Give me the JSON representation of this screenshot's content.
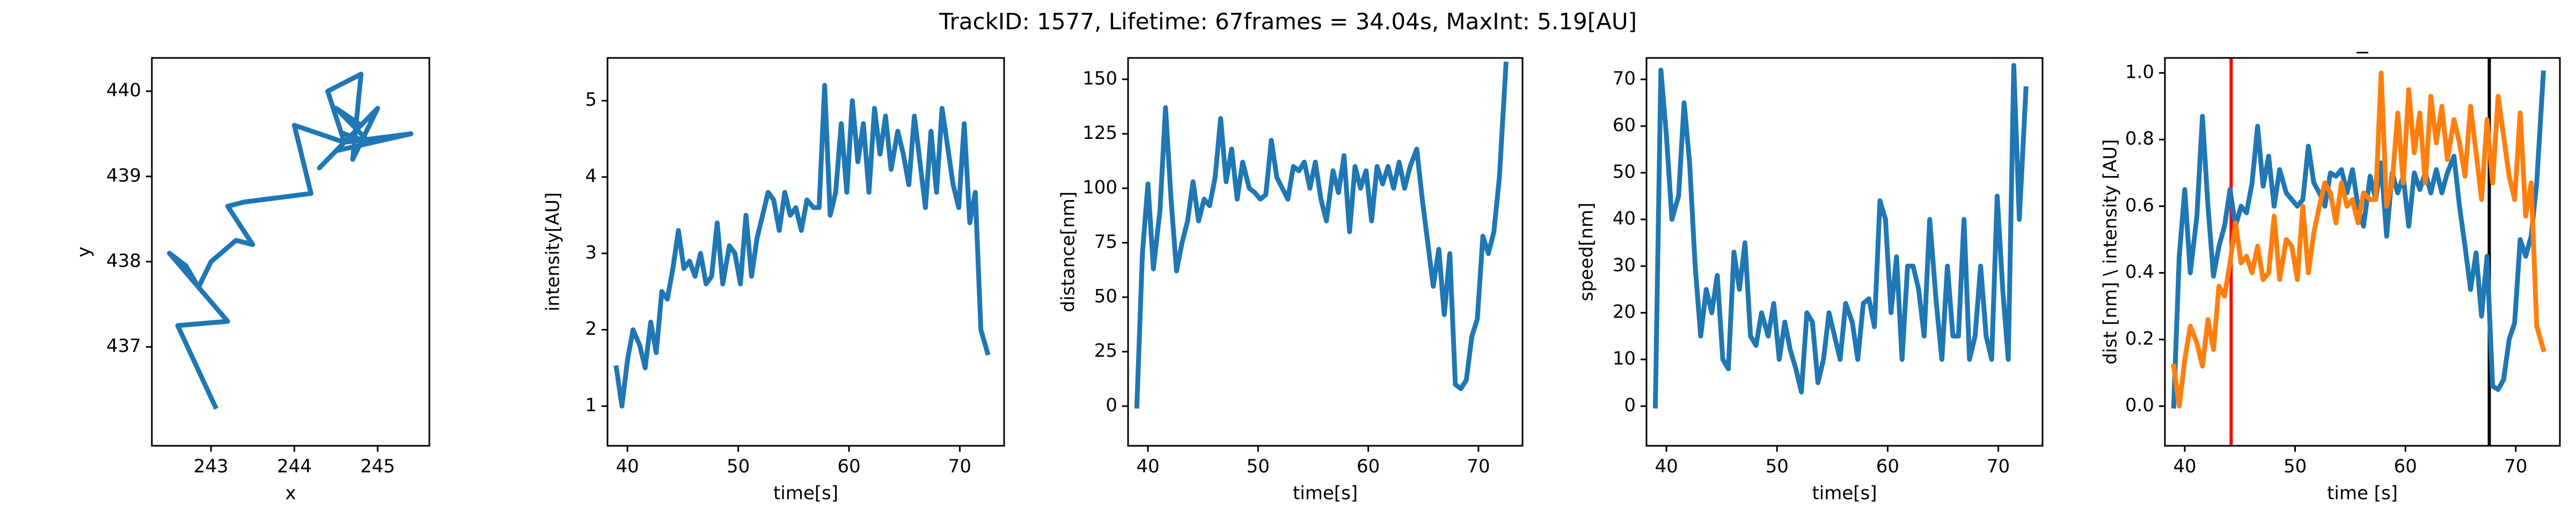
{
  "title": "TrackID: 1577, Lifetime: 67frames = 34.04s, MaxInt: 5.19[AU]",
  "chart_data": [
    {
      "type": "line",
      "xlabel": "x",
      "ylabel": "y",
      "xlim": [
        242.29,
        245.62
      ],
      "ylim": [
        435.84,
        440.39
      ],
      "xticks": [
        243,
        244,
        245
      ],
      "yticks": [
        437,
        438,
        439,
        440
      ],
      "x": [
        243.05,
        242.6,
        243.2,
        242.5,
        242.7,
        242.85,
        243.0,
        243.3,
        243.5,
        243.2,
        243.4,
        244.2,
        244.0,
        244.6,
        244.4,
        244.8,
        244.7,
        245.0,
        244.5,
        245.4,
        244.6,
        244.9,
        244.3,
        244.8,
        244.5,
        244.9,
        244.6
      ],
      "series": [
        {
          "color": "#1f77b4",
          "values": [
            436.3,
            437.25,
            437.3,
            438.1,
            437.95,
            437.7,
            438.0,
            438.25,
            438.2,
            438.65,
            438.7,
            438.8,
            439.6,
            439.4,
            440.0,
            440.2,
            439.2,
            439.8,
            439.3,
            439.5,
            439.4,
            439.7,
            439.1,
            439.6,
            439.8,
            439.4,
            439.5
          ]
        }
      ]
    },
    {
      "type": "line",
      "xlabel": "time[s]",
      "ylabel": "intensity[AU]",
      "xlim": [
        38.2,
        74.0
      ],
      "ylim": [
        0.48,
        5.56
      ],
      "xticks": [
        40,
        50,
        60,
        70
      ],
      "yticks": [
        1,
        2,
        3,
        4,
        5
      ],
      "x": [
        39.0,
        39.5,
        40.0,
        40.5,
        41.1,
        41.6,
        42.1,
        42.6,
        43.1,
        43.6,
        44.1,
        44.6,
        45.1,
        45.6,
        46.1,
        46.6,
        47.1,
        47.6,
        48.1,
        48.6,
        49.2,
        49.7,
        50.2,
        50.7,
        51.2,
        51.7,
        52.2,
        52.7,
        53.2,
        53.7,
        54.2,
        54.7,
        55.2,
        55.7,
        56.2,
        56.8,
        57.3,
        57.8,
        58.3,
        58.8,
        59.3,
        59.8,
        60.3,
        60.8,
        61.3,
        61.8,
        62.3,
        62.8,
        63.3,
        63.8,
        64.4,
        64.9,
        65.4,
        65.9,
        66.4,
        66.9,
        67.4,
        67.9,
        68.4,
        68.9,
        69.4,
        69.9,
        70.4,
        70.9,
        71.4,
        71.9,
        72.5
      ],
      "series": [
        {
          "color": "#1f77b4",
          "values": [
            1.5,
            1.0,
            1.6,
            2.0,
            1.8,
            1.5,
            2.1,
            1.7,
            2.5,
            2.4,
            2.8,
            3.3,
            2.8,
            2.9,
            2.7,
            3.0,
            2.6,
            2.7,
            3.4,
            2.6,
            3.1,
            3.0,
            2.6,
            3.5,
            2.7,
            3.2,
            3.5,
            3.8,
            3.7,
            3.3,
            3.8,
            3.5,
            3.6,
            3.3,
            3.7,
            3.6,
            3.6,
            5.2,
            3.5,
            3.8,
            4.7,
            3.8,
            5.0,
            4.2,
            4.7,
            3.8,
            4.9,
            4.3,
            4.8,
            4.1,
            4.6,
            4.3,
            3.9,
            4.8,
            4.2,
            3.6,
            4.6,
            3.8,
            4.9,
            4.4,
            3.9,
            3.6,
            4.7,
            3.4,
            3.8,
            2.0,
            1.7
          ]
        }
      ]
    },
    {
      "type": "line",
      "xlabel": "time[s]",
      "ylabel": "distance[nm]",
      "xlim": [
        38.2,
        74.0
      ],
      "ylim": [
        -18.2,
        159.8
      ],
      "xticks": [
        40,
        50,
        60,
        70
      ],
      "yticks": [
        0,
        25,
        50,
        75,
        100,
        125,
        150
      ],
      "x": [
        39.0,
        39.5,
        40.0,
        40.5,
        41.1,
        41.6,
        42.1,
        42.6,
        43.1,
        43.6,
        44.1,
        44.6,
        45.1,
        45.6,
        46.1,
        46.6,
        47.1,
        47.6,
        48.1,
        48.6,
        49.2,
        49.7,
        50.2,
        50.7,
        51.2,
        51.7,
        52.2,
        52.7,
        53.2,
        53.7,
        54.2,
        54.7,
        55.2,
        55.7,
        56.2,
        56.8,
        57.3,
        57.8,
        58.3,
        58.8,
        59.3,
        59.8,
        60.3,
        60.8,
        61.3,
        61.8,
        62.3,
        62.8,
        63.3,
        63.8,
        64.4,
        64.9,
        65.4,
        65.9,
        66.4,
        66.9,
        67.4,
        67.9,
        68.4,
        68.9,
        69.4,
        69.9,
        70.4,
        70.9,
        71.4,
        71.9,
        72.5
      ],
      "series": [
        {
          "color": "#1f77b4",
          "values": [
            0,
            70,
            102,
            63,
            90,
            137,
            95,
            62,
            75,
            85,
            103,
            85,
            95,
            92,
            105,
            132,
            103,
            118,
            95,
            112,
            100,
            98,
            95,
            97,
            122,
            105,
            100,
            95,
            110,
            108,
            112,
            100,
            112,
            95,
            85,
            108,
            98,
            115,
            80,
            110,
            100,
            108,
            85,
            110,
            102,
            110,
            100,
            112,
            100,
            110,
            118,
            95,
            75,
            55,
            72,
            42,
            70,
            10,
            8,
            12,
            32,
            40,
            78,
            70,
            80,
            105,
            157
          ]
        }
      ]
    },
    {
      "type": "line",
      "xlabel": "time[s]",
      "ylabel": "speed[nm]",
      "xlim": [
        38.2,
        74.0
      ],
      "ylim": [
        -8.5,
        74.6
      ],
      "xticks": [
        40,
        50,
        60,
        70
      ],
      "yticks": [
        0,
        10,
        20,
        30,
        40,
        50,
        60,
        70
      ],
      "x": [
        39.0,
        39.5,
        40.0,
        40.5,
        41.1,
        41.6,
        42.1,
        42.6,
        43.1,
        43.6,
        44.1,
        44.6,
        45.1,
        45.6,
        46.1,
        46.6,
        47.1,
        47.6,
        48.1,
        48.6,
        49.2,
        49.7,
        50.2,
        50.7,
        51.2,
        51.7,
        52.2,
        52.7,
        53.2,
        53.7,
        54.2,
        54.7,
        55.2,
        55.7,
        56.2,
        56.8,
        57.3,
        57.8,
        58.3,
        58.8,
        59.3,
        59.8,
        60.3,
        60.8,
        61.3,
        61.8,
        62.3,
        62.8,
        63.3,
        63.8,
        64.4,
        64.9,
        65.4,
        65.9,
        66.4,
        66.9,
        67.4,
        67.9,
        68.4,
        68.9,
        69.4,
        69.9,
        70.4,
        70.9,
        71.4,
        71.9,
        72.5
      ],
      "series": [
        {
          "color": "#1f77b4",
          "values": [
            0,
            72,
            58,
            40,
            45,
            65,
            52,
            30,
            15,
            25,
            20,
            28,
            10,
            8,
            33,
            25,
            35,
            15,
            13,
            20,
            15,
            22,
            10,
            18,
            12,
            8,
            3,
            20,
            18,
            5,
            10,
            20,
            15,
            10,
            22,
            18,
            10,
            22,
            23,
            17,
            44,
            40,
            20,
            32,
            10,
            30,
            30,
            25,
            15,
            40,
            22,
            10,
            30,
            15,
            15,
            40,
            10,
            15,
            30,
            15,
            10,
            45,
            25,
            10,
            73,
            40,
            68
          ]
        }
      ]
    },
    {
      "type": "line",
      "title": "_",
      "xlabel": "time [s]",
      "ylabel": "dist [nm] \\ intensity [AU]",
      "xlim": [
        38.2,
        74.0
      ],
      "ylim": [
        -0.119,
        1.045
      ],
      "xticks": [
        40,
        50,
        60,
        70
      ],
      "yticks": [
        {
          "value": 0,
          "label": "0.0"
        },
        0.2,
        0.4,
        0.6,
        0.8,
        {
          "value": 1,
          "label": "1.0"
        }
      ],
      "x": [
        39.0,
        39.5,
        40.0,
        40.5,
        41.1,
        41.6,
        42.1,
        42.6,
        43.1,
        43.6,
        44.1,
        44.6,
        45.1,
        45.6,
        46.1,
        46.6,
        47.1,
        47.6,
        48.1,
        48.6,
        49.2,
        49.7,
        50.2,
        50.7,
        51.2,
        51.7,
        52.2,
        52.7,
        53.2,
        53.7,
        54.2,
        54.7,
        55.2,
        55.7,
        56.2,
        56.8,
        57.3,
        57.8,
        58.3,
        58.8,
        59.3,
        59.8,
        60.3,
        60.8,
        61.3,
        61.8,
        62.3,
        62.8,
        63.3,
        63.8,
        64.4,
        64.9,
        65.4,
        65.9,
        66.4,
        66.9,
        67.4,
        67.9,
        68.4,
        68.9,
        69.4,
        69.9,
        70.4,
        70.9,
        71.4,
        71.9,
        72.5
      ],
      "series": [
        {
          "color": "#1f77b4",
          "values": [
            0,
            0.45,
            0.65,
            0.4,
            0.57,
            0.87,
            0.6,
            0.39,
            0.48,
            0.54,
            0.65,
            0.54,
            0.6,
            0.58,
            0.67,
            0.84,
            0.66,
            0.75,
            0.6,
            0.71,
            0.64,
            0.62,
            0.6,
            0.62,
            0.78,
            0.67,
            0.64,
            0.6,
            0.7,
            0.69,
            0.71,
            0.64,
            0.71,
            0.6,
            0.54,
            0.69,
            0.62,
            0.73,
            0.51,
            0.7,
            0.64,
            0.69,
            0.54,
            0.7,
            0.65,
            0.7,
            0.64,
            0.71,
            0.64,
            0.7,
            0.75,
            0.6,
            0.48,
            0.35,
            0.46,
            0.27,
            0.45,
            0.06,
            0.05,
            0.08,
            0.2,
            0.25,
            0.5,
            0.45,
            0.51,
            0.67,
            1.0
          ]
        },
        {
          "color": "#ff7f0e",
          "values": [
            0.12,
            0,
            0.14,
            0.24,
            0.19,
            0.12,
            0.26,
            0.17,
            0.36,
            0.33,
            0.43,
            0.55,
            0.43,
            0.45,
            0.4,
            0.48,
            0.38,
            0.4,
            0.57,
            0.38,
            0.5,
            0.48,
            0.38,
            0.6,
            0.4,
            0.52,
            0.6,
            0.67,
            0.64,
            0.55,
            0.67,
            0.6,
            0.62,
            0.55,
            0.64,
            0.62,
            0.62,
            1.0,
            0.6,
            0.67,
            0.88,
            0.67,
            0.95,
            0.76,
            0.88,
            0.67,
            0.93,
            0.79,
            0.9,
            0.74,
            0.86,
            0.79,
            0.69,
            0.9,
            0.76,
            0.62,
            0.86,
            0.67,
            0.93,
            0.81,
            0.69,
            0.62,
            0.88,
            0.57,
            0.67,
            0.24,
            0.17
          ]
        }
      ],
      "vlines": [
        {
          "x": 44.2,
          "color": "#ff0000"
        },
        {
          "x": 67.6,
          "color": "#000000"
        }
      ]
    }
  ]
}
